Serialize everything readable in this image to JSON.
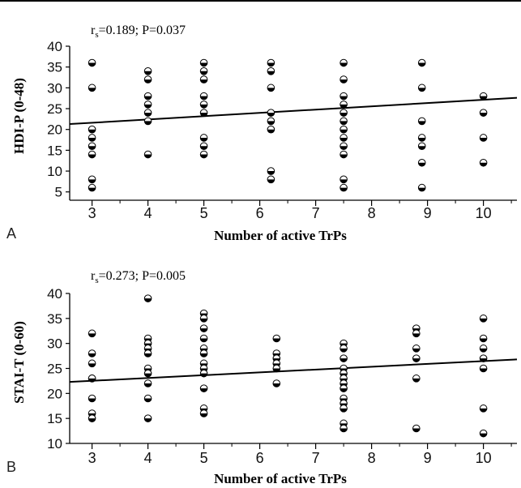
{
  "chart_data": [
    {
      "type": "scatter",
      "panel_label": "A",
      "annotation": {
        "main": "r",
        "sub": "s",
        "rest": "=0.189; P=0.037"
      },
      "xlabel": "Number of active TrPs",
      "ylabel": "HDI-P (0-48)",
      "x_ticks": [
        "3",
        "4",
        "5",
        "6",
        "7",
        "8",
        "9",
        "10"
      ],
      "y_ticks": [
        "5",
        "10",
        "15",
        "20",
        "25",
        "30",
        "35",
        "40"
      ],
      "xlim": [
        2.6,
        10.6
      ],
      "ylim": [
        3,
        40
      ],
      "grid": false,
      "points": [
        [
          3,
          36
        ],
        [
          3,
          30
        ],
        [
          3,
          20
        ],
        [
          3,
          18
        ],
        [
          3,
          16
        ],
        [
          3,
          14
        ],
        [
          3,
          8
        ],
        [
          3,
          6
        ],
        [
          4,
          34
        ],
        [
          4,
          32
        ],
        [
          4,
          28
        ],
        [
          4,
          26
        ],
        [
          4,
          24
        ],
        [
          4,
          22
        ],
        [
          4,
          14
        ],
        [
          5,
          36
        ],
        [
          5,
          34
        ],
        [
          5,
          32
        ],
        [
          5,
          28
        ],
        [
          5,
          26
        ],
        [
          5,
          24
        ],
        [
          5,
          18
        ],
        [
          5,
          16
        ],
        [
          5,
          14
        ],
        [
          6.2,
          36
        ],
        [
          6.2,
          34
        ],
        [
          6.2,
          30
        ],
        [
          6.2,
          24
        ],
        [
          6.2,
          22
        ],
        [
          6.2,
          20
        ],
        [
          6.2,
          10
        ],
        [
          6.2,
          8
        ],
        [
          7.5,
          36
        ],
        [
          7.5,
          32
        ],
        [
          7.5,
          28
        ],
        [
          7.5,
          26
        ],
        [
          7.5,
          24
        ],
        [
          7.5,
          22
        ],
        [
          7.5,
          20
        ],
        [
          7.5,
          18
        ],
        [
          7.5,
          16
        ],
        [
          7.5,
          14
        ],
        [
          7.5,
          8
        ],
        [
          7.5,
          6
        ],
        [
          8.9,
          36
        ],
        [
          8.9,
          30
        ],
        [
          8.9,
          22
        ],
        [
          8.9,
          18
        ],
        [
          8.9,
          16
        ],
        [
          8.9,
          12
        ],
        [
          8.9,
          6
        ],
        [
          10,
          28
        ],
        [
          10,
          24
        ],
        [
          10,
          18
        ],
        [
          10,
          12
        ]
      ],
      "fit_line": [
        [
          2.6,
          21.3
        ],
        [
          10.6,
          27.6
        ]
      ]
    },
    {
      "type": "scatter",
      "panel_label": "B",
      "annotation": {
        "main": "r",
        "sub": "s",
        "rest": "=0.273; P=0.005"
      },
      "xlabel": "Number of active TrPs",
      "ylabel": "STAI-T (0-60)",
      "x_ticks": [
        "3",
        "4",
        "5",
        "6",
        "7",
        "8",
        "9",
        "10"
      ],
      "y_ticks": [
        "10",
        "15",
        "20",
        "25",
        "30",
        "35",
        "40"
      ],
      "xlim": [
        2.6,
        10.6
      ],
      "ylim": [
        10,
        40
      ],
      "grid": false,
      "points": [
        [
          3,
          32
        ],
        [
          3,
          28
        ],
        [
          3,
          26
        ],
        [
          3,
          23
        ],
        [
          3,
          23
        ],
        [
          3,
          19
        ],
        [
          3,
          16
        ],
        [
          3,
          15
        ],
        [
          4,
          39
        ],
        [
          4,
          31
        ],
        [
          4,
          30
        ],
        [
          4,
          29
        ],
        [
          4,
          28
        ],
        [
          4,
          25
        ],
        [
          4,
          24
        ],
        [
          4,
          22
        ],
        [
          4,
          19
        ],
        [
          4,
          15
        ],
        [
          5,
          36
        ],
        [
          5,
          35
        ],
        [
          5,
          33
        ],
        [
          5,
          31
        ],
        [
          5,
          29
        ],
        [
          5,
          28
        ],
        [
          5,
          26
        ],
        [
          5,
          25
        ],
        [
          5,
          24
        ],
        [
          5,
          21
        ],
        [
          5,
          17
        ],
        [
          5,
          16
        ],
        [
          6.3,
          31
        ],
        [
          6.3,
          28
        ],
        [
          6.3,
          27
        ],
        [
          6.3,
          26
        ],
        [
          6.3,
          25
        ],
        [
          6.3,
          22
        ],
        [
          7.5,
          30
        ],
        [
          7.5,
          29
        ],
        [
          7.5,
          27
        ],
        [
          7.5,
          25
        ],
        [
          7.5,
          24
        ],
        [
          7.5,
          23
        ],
        [
          7.5,
          22
        ],
        [
          7.5,
          21
        ],
        [
          7.5,
          19
        ],
        [
          7.5,
          18
        ],
        [
          7.5,
          17
        ],
        [
          7.5,
          14
        ],
        [
          7.5,
          13
        ],
        [
          8.8,
          33
        ],
        [
          8.8,
          32
        ],
        [
          8.8,
          29
        ],
        [
          8.8,
          27
        ],
        [
          8.8,
          23
        ],
        [
          8.8,
          13
        ],
        [
          10,
          35
        ],
        [
          10,
          31
        ],
        [
          10,
          29
        ],
        [
          10,
          27
        ],
        [
          10,
          25
        ],
        [
          10,
          17
        ],
        [
          10,
          12
        ]
      ],
      "fit_line": [
        [
          2.6,
          22.3
        ],
        [
          10.6,
          26.8
        ]
      ]
    }
  ]
}
